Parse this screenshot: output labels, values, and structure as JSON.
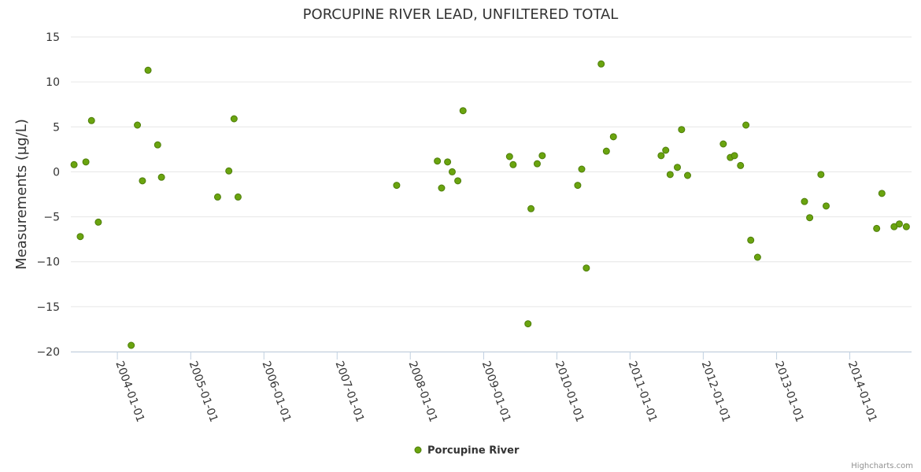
{
  "chart_data": {
    "type": "scatter",
    "title": "PORCUPINE RIVER LEAD, UNFILTERED TOTAL",
    "ylabel": "Measurements (µg/L)",
    "xlabel": "",
    "ylim": [
      -20,
      15
    ],
    "y_ticks": [
      "15",
      "10",
      "5",
      "0",
      "−5",
      "−10",
      "−15",
      "−20"
    ],
    "x_ticks": [
      "2004-01-01",
      "2005-01-01",
      "2006-01-01",
      "2007-01-01",
      "2008-01-01",
      "2009-01-01",
      "2010-01-01",
      "2011-01-01",
      "2012-01-01",
      "2013-01-01",
      "2014-01-01"
    ],
    "xlim": [
      "2003-05-14",
      "2014-11-05"
    ],
    "grid": true,
    "legend_position": "bottom-center",
    "series": [
      {
        "name": "Porcupine River",
        "color": "#6aa40f",
        "points": [
          {
            "x": "2003-05-30",
            "y": 0.8
          },
          {
            "x": "2003-06-30",
            "y": -7.2
          },
          {
            "x": "2003-07-28",
            "y": 1.1
          },
          {
            "x": "2003-08-25",
            "y": 5.7
          },
          {
            "x": "2003-09-28",
            "y": -5.6
          },
          {
            "x": "2004-03-10",
            "y": -19.3
          },
          {
            "x": "2004-04-10",
            "y": 5.2
          },
          {
            "x": "2004-05-05",
            "y": -1.0
          },
          {
            "x": "2004-06-02",
            "y": 11.3
          },
          {
            "x": "2004-07-20",
            "y": 3.0
          },
          {
            "x": "2004-08-08",
            "y": -0.6
          },
          {
            "x": "2005-05-15",
            "y": -2.8
          },
          {
            "x": "2005-07-10",
            "y": 0.1
          },
          {
            "x": "2005-08-05",
            "y": 5.9
          },
          {
            "x": "2005-08-25",
            "y": -2.8
          },
          {
            "x": "2007-10-25",
            "y": -1.5
          },
          {
            "x": "2008-05-15",
            "y": 1.2
          },
          {
            "x": "2008-06-05",
            "y": -1.8
          },
          {
            "x": "2008-07-05",
            "y": 1.1
          },
          {
            "x": "2008-07-28",
            "y": 0.0
          },
          {
            "x": "2008-08-25",
            "y": -1.0
          },
          {
            "x": "2008-09-20",
            "y": 6.8
          },
          {
            "x": "2009-05-10",
            "y": 1.7
          },
          {
            "x": "2009-05-28",
            "y": 0.8
          },
          {
            "x": "2009-08-10",
            "y": -16.9
          },
          {
            "x": "2009-08-25",
            "y": -4.1
          },
          {
            "x": "2009-09-25",
            "y": 0.9
          },
          {
            "x": "2009-10-20",
            "y": 1.8
          },
          {
            "x": "2010-04-15",
            "y": -1.5
          },
          {
            "x": "2010-05-05",
            "y": 0.3
          },
          {
            "x": "2010-05-28",
            "y": -10.7
          },
          {
            "x": "2010-08-10",
            "y": 12.0
          },
          {
            "x": "2010-09-05",
            "y": 2.3
          },
          {
            "x": "2010-10-10",
            "y": 3.9
          },
          {
            "x": "2011-06-05",
            "y": 1.8
          },
          {
            "x": "2011-06-28",
            "y": 2.4
          },
          {
            "x": "2011-07-20",
            "y": -0.3
          },
          {
            "x": "2011-08-25",
            "y": 0.5
          },
          {
            "x": "2011-09-15",
            "y": 4.7
          },
          {
            "x": "2011-10-15",
            "y": -0.4
          },
          {
            "x": "2012-04-10",
            "y": 3.1
          },
          {
            "x": "2012-05-15",
            "y": 1.6
          },
          {
            "x": "2012-06-05",
            "y": 1.8
          },
          {
            "x": "2012-07-05",
            "y": 0.7
          },
          {
            "x": "2012-08-01",
            "y": 5.2
          },
          {
            "x": "2012-08-25",
            "y": -7.6
          },
          {
            "x": "2012-09-28",
            "y": -9.5
          },
          {
            "x": "2013-05-20",
            "y": -3.3
          },
          {
            "x": "2013-06-15",
            "y": -5.1
          },
          {
            "x": "2013-08-10",
            "y": -0.3
          },
          {
            "x": "2013-09-05",
            "y": -3.8
          },
          {
            "x": "2014-05-15",
            "y": -6.3
          },
          {
            "x": "2014-06-10",
            "y": -2.4
          },
          {
            "x": "2014-08-10",
            "y": -6.1
          },
          {
            "x": "2014-09-05",
            "y": -5.8
          },
          {
            "x": "2014-10-10",
            "y": -6.1
          }
        ]
      }
    ]
  },
  "legend": {
    "label": "Porcupine River"
  },
  "credits": {
    "label": "Highcharts.com"
  }
}
